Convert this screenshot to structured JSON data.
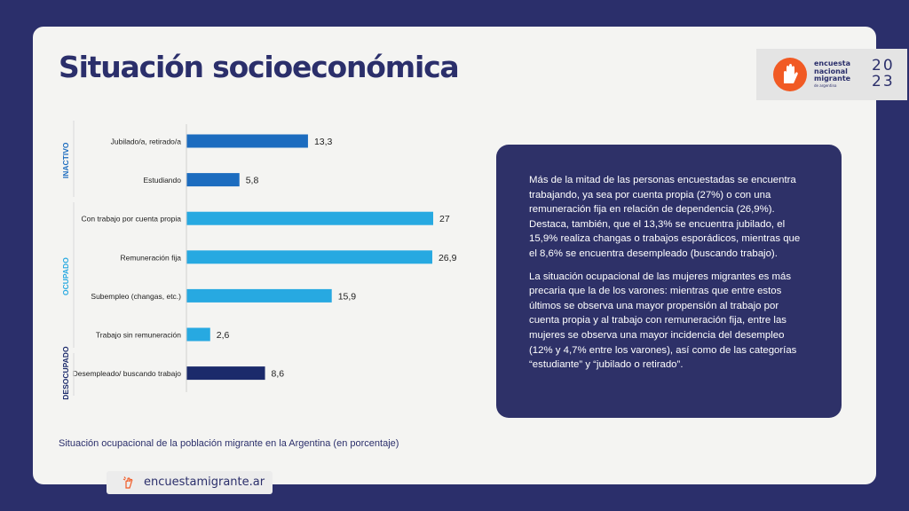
{
  "page": {
    "title": "Situación socioeconómica"
  },
  "logo": {
    "lines": [
      "encuesta",
      "nacional",
      "migrante"
    ],
    "subline": "DE ARGENTINA",
    "year_top": "20",
    "year_bottom": "23"
  },
  "chart_data": {
    "type": "bar",
    "orientation": "horizontal",
    "title": "",
    "xlabel": "",
    "ylabel": "",
    "groups": [
      {
        "name": "INACTIVO",
        "color": "#1c6cbf",
        "items": [
          0,
          1
        ]
      },
      {
        "name": "OCUPADO",
        "color": "#27a9e1",
        "items": [
          2,
          3,
          4,
          5
        ]
      },
      {
        "name": "DESOCUPADO",
        "color": "#1b2a6b",
        "items": [
          6
        ]
      }
    ],
    "categories": [
      "Jubilado/a, retirado/a",
      "Estudiando",
      "Con trabajo por cuenta propia",
      "Remuneración fija",
      "Subempleo (changas, etc.)",
      "Trabajo sin remuneración",
      "Desempleado/ buscando trabajo"
    ],
    "values": [
      13.3,
      5.8,
      27,
      26.9,
      15.9,
      2.6,
      8.6
    ],
    "value_labels": [
      "13,3",
      "5,8",
      "27",
      "26,9",
      "15,9",
      "2,6",
      "8,6"
    ],
    "xlim": [
      0,
      27
    ],
    "grid": false
  },
  "info": {
    "paragraph1": "Más de la mitad de las personas encuestadas se encuentra trabajando, ya sea por cuenta propia (27%) o con una remuneración fija en relación de dependencia (26,9%). Destaca, también, que el 13,3% se encuentra jubilado, el 15,9% realiza changas o trabajos esporádicos, mientras que el 8,6% se encuentra desempleado (buscando trabajo).",
    "paragraph2": "La situación ocupacional de las mujeres migrantes es más precaria que la de los varones: mientras que entre estos últimos se observa una mayor propensión al trabajo por cuenta propia y al trabajo con remuneración fija, entre las mujeres se observa una mayor incidencia del desempleo (12% y 4,7% entre los varones), así como de las categorías “estudiante” y “jubilado o retirado”."
  },
  "caption": "Situación ocupacional de la población migrante en la Argentina (en porcentaje)",
  "footer": {
    "url": "encuestamigrante.ar"
  },
  "colors": {
    "background": "#2b2f6b",
    "card": "#f4f4f2",
    "accent": "#f15a24"
  }
}
